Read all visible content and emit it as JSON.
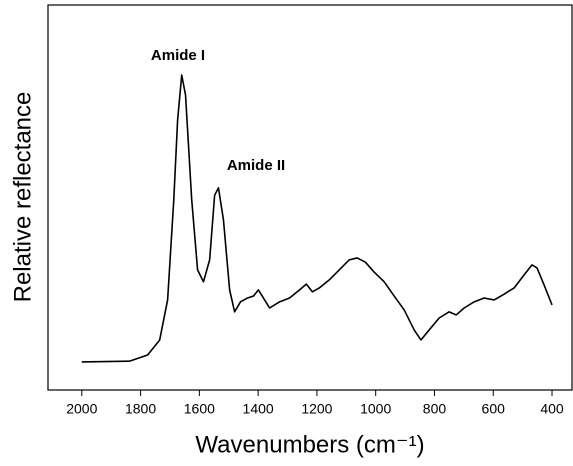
{
  "chart_data": {
    "type": "line",
    "x_label": "Wavenumbers (cm⁻¹)",
    "y_label": "Relative reflectance",
    "annotations": [
      "Amide I",
      "Amide II"
    ],
    "x": [
      2000,
      1837,
      1776,
      1735,
      1708,
      1687,
      1674,
      1660,
      1647,
      1626,
      1606,
      1586,
      1565,
      1548,
      1535,
      1518,
      1497,
      1480,
      1460,
      1436,
      1416,
      1399,
      1378,
      1361,
      1327,
      1293,
      1259,
      1236,
      1215,
      1192,
      1158,
      1124,
      1090,
      1063,
      1035,
      1005,
      971,
      937,
      903,
      869,
      846,
      818,
      784,
      750,
      726,
      699,
      665,
      631,
      597,
      563,
      529,
      495,
      468,
      451,
      427,
      400
    ],
    "series": [
      {
        "color": "#000000",
        "values": [
          7.3,
          7.5,
          9.1,
          13.0,
          23.4,
          49.4,
          70.1,
          81.8,
          76.6,
          49.4,
          31.2,
          28.1,
          33.8,
          50.6,
          52.5,
          44.2,
          26.0,
          20.3,
          22.9,
          23.9,
          24.4,
          26.0,
          23.4,
          21.3,
          22.9,
          23.9,
          26.0,
          27.5,
          25.5,
          26.5,
          28.6,
          31.2,
          33.8,
          34.3,
          33.2,
          30.6,
          28.1,
          24.4,
          20.8,
          15.6,
          13.0,
          15.6,
          18.7,
          20.3,
          19.5,
          21.3,
          22.9,
          23.9,
          23.4,
          24.9,
          26.5,
          29.9,
          32.5,
          31.7,
          27.3,
          22.1
        ]
      }
    ],
    "xlim": [
      2115,
      332
    ],
    "xticks": [
      2000,
      1800,
      1600,
      1400,
      1200,
      1000,
      800,
      600,
      400
    ],
    "ylim": [
      0,
      100
    ],
    "grid": false
  }
}
